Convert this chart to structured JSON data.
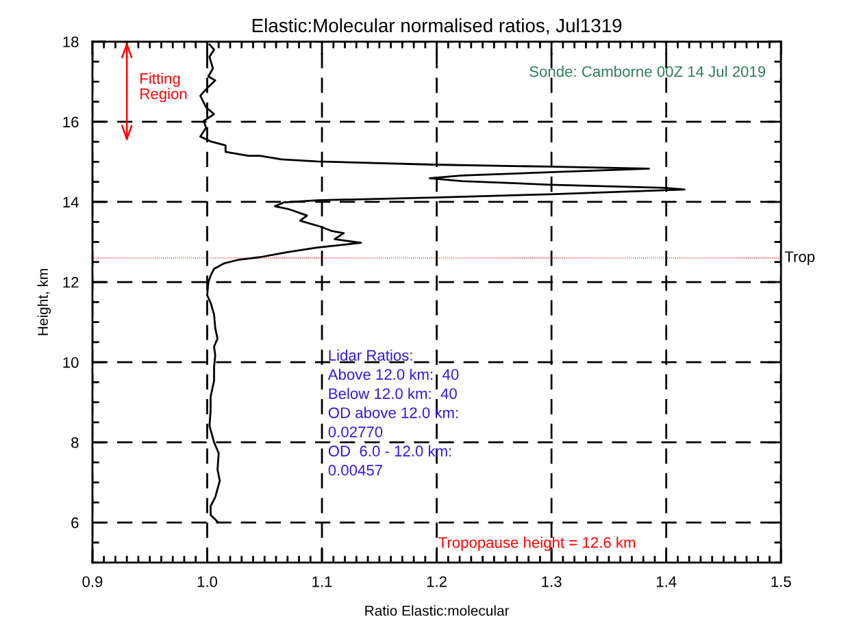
{
  "chart_data": {
    "type": "line",
    "title": "Elastic:Molecular normalised ratios, Jul1319",
    "xlabel": "Ratio Elastic:molecular",
    "ylabel": "Height, km",
    "series": [
      {
        "color": "#000000",
        "x": [
          1.009,
          1.003,
          1.003,
          1.007,
          1.011,
          1.009,
          1.01,
          1.006,
          1.002,
          1.003,
          1.003,
          1.006,
          1.006,
          1.007,
          1.006,
          1.009,
          1.007,
          1.006,
          1.003,
          1.0,
          1.001,
          1.003,
          1.006,
          1.015,
          1.028,
          1.046,
          1.069,
          1.096,
          1.134,
          1.111,
          1.119,
          1.109,
          1.099,
          1.086,
          1.081,
          1.087,
          1.071,
          1.059,
          1.067,
          1.096,
          1.197,
          1.298,
          1.416,
          1.398,
          1.298,
          1.222,
          1.194,
          1.222,
          1.298,
          1.385,
          1.298,
          1.197,
          1.096,
          1.065,
          1.046,
          1.036,
          1.016,
          1.016,
          1.003,
          0.994,
          0.999,
          0.997,
          1.006,
          0.999,
          0.997,
          0.994,
          1.001,
          1.007,
          1.001,
          1.005,
          1.002,
          1.006,
          1.002
        ],
        "values": [
          6.02,
          6.19,
          6.41,
          6.63,
          7.04,
          7.32,
          7.73,
          8.0,
          8.41,
          8.8,
          9.14,
          9.54,
          9.88,
          10.17,
          10.39,
          10.59,
          10.85,
          11.19,
          11.48,
          11.67,
          11.99,
          12.16,
          12.33,
          12.47,
          12.56,
          12.62,
          12.74,
          12.86,
          12.98,
          13.07,
          13.22,
          13.27,
          13.38,
          13.49,
          13.53,
          13.66,
          13.82,
          13.89,
          13.99,
          14.04,
          14.11,
          14.19,
          14.31,
          14.35,
          14.43,
          14.52,
          14.59,
          14.66,
          14.74,
          14.83,
          14.88,
          14.93,
          15.01,
          15.06,
          15.15,
          15.15,
          15.25,
          15.41,
          15.51,
          15.63,
          15.85,
          16.02,
          16.19,
          16.36,
          16.48,
          16.65,
          16.87,
          17.03,
          17.13,
          17.33,
          17.62,
          17.8,
          17.93
        ]
      }
    ],
    "xlim": [
      0.9,
      1.5
    ],
    "xticks": [
      0.9,
      {
        "value": 1,
        "label": "1.0"
      },
      1.1,
      1.2,
      1.3,
      1.4,
      1.5
    ],
    "ylim": [
      5,
      18
    ],
    "yticks": [
      6,
      8,
      10,
      12,
      14,
      16,
      18
    ],
    "grid": true,
    "marker": "none",
    "line_style": "solid",
    "ref_lines": [
      {
        "axis": "y",
        "value": 12.6,
        "label": "Trop",
        "color": "#ff0000",
        "line_style": "dotted"
      }
    ],
    "annotations": [
      "Fitting\nRegion",
      "Sonde: Camborne 00Z 14 Jul 2019",
      "Lidar Ratios:\nAbove 12.0 km:  40\nBelow 12.0 km:  40\nOD above 12.0 km:\n0.02770\nOD  6.0 - 12.0 km:\n0.00457",
      "Tropopause height = 12.6 km"
    ]
  }
}
